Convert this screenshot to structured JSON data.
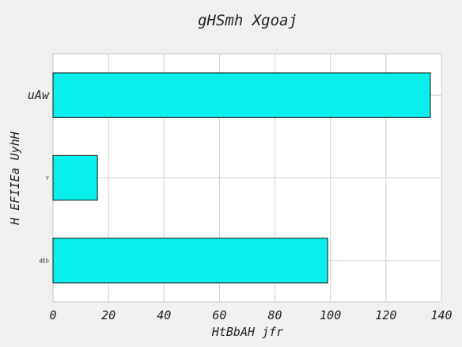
{
  "chart_data": {
    "type": "bar",
    "orientation": "horizontal",
    "title": "gHSmh Xgoaj",
    "xlabel": "HtBbAH jfr",
    "ylabel": "H EFIIEa UyhH",
    "categories": [
      "dEb",
      "Y",
      "uAw"
    ],
    "values": [
      99,
      16,
      136
    ],
    "xlim": [
      0,
      140
    ],
    "xticks": [
      "0",
      "20",
      "40",
      "60",
      "80",
      "100",
      "120",
      "140"
    ],
    "grid": true,
    "legend": false,
    "colors": {
      "bar_fill": "#08efec",
      "bar_edge": "#111111",
      "plot_background": "#ffffff",
      "figure_background": "#f0f0f0",
      "grid": "#cfcfcf"
    }
  }
}
